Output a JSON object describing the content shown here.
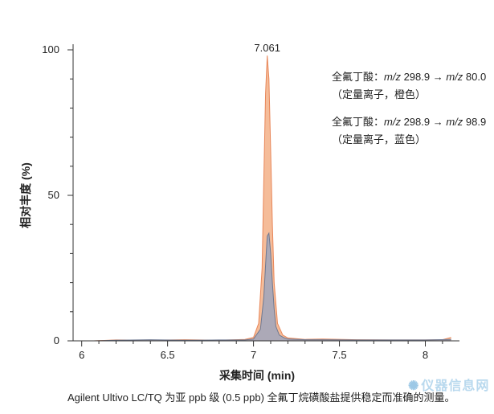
{
  "chart_data": {
    "type": "area",
    "xlabel": "采集时间 (min)",
    "ylabel": "相对丰度 (%)",
    "xlim": [
      5.95,
      8.18
    ],
    "ylim": [
      0,
      100
    ],
    "x_ticks": [
      "6",
      "6.5",
      "7",
      "7.5",
      "8"
    ],
    "x_tick_values": [
      6,
      6.5,
      7,
      7.5,
      8
    ],
    "y_ticks": [
      "0",
      "50",
      "100"
    ],
    "y_tick_values": [
      0,
      50,
      100
    ],
    "grid": false,
    "peak_annotation": {
      "label": "7.061",
      "x": 7.08,
      "y": 100
    },
    "series": [
      {
        "name": "全氟丁酸：m/z 298.9 → m/z 80.0（定量离子，橙色）",
        "color": "#f4b894",
        "line_color": "#e8875a",
        "x": [
          6.07,
          6.2,
          6.4,
          6.6,
          6.8,
          6.95,
          7.0,
          7.03,
          7.05,
          7.06,
          7.07,
          7.08,
          7.09,
          7.1,
          7.11,
          7.12,
          7.14,
          7.17,
          7.2,
          7.3,
          7.4,
          7.6,
          7.8,
          8.0,
          8.1,
          8.15
        ],
        "values": [
          0,
          0.3,
          0.2,
          0.4,
          0.2,
          0.5,
          1.2,
          6,
          25,
          55,
          85,
          98,
          90,
          65,
          40,
          20,
          6,
          2,
          1,
          0.5,
          0.6,
          0.4,
          0.3,
          0.3,
          0.4,
          1.2
        ]
      },
      {
        "name": "全氟丁酸：m/z 298.9 → m/z 98.9（定量离子，蓝色）",
        "color": "#a8a8b8",
        "line_color": "#6f7890",
        "x": [
          6.07,
          6.2,
          6.4,
          6.6,
          6.8,
          6.95,
          7.0,
          7.04,
          7.06,
          7.07,
          7.08,
          7.09,
          7.1,
          7.11,
          7.12,
          7.13,
          7.15,
          7.18,
          7.2,
          7.3,
          7.4,
          7.6,
          7.8,
          8.0,
          8.15
        ],
        "values": [
          0,
          0.2,
          0.4,
          0.2,
          0.3,
          0.3,
          0.6,
          4,
          15,
          26,
          36,
          37,
          30,
          20,
          11,
          5,
          2,
          1,
          0.6,
          0.4,
          0.4,
          0.3,
          0.3,
          0.3,
          0.5
        ]
      }
    ]
  },
  "legend": {
    "entries": [
      {
        "prefix": "全氟丁酸：",
        "mz1_label": "m/z",
        "mz1_value": " 298.9 → ",
        "mz2_label": "m/z",
        "mz2_value": " 80.0",
        "note": "（定量离子，橙色）"
      },
      {
        "prefix": "全氟丁酸：",
        "mz1_label": "m/z",
        "mz1_value": " 298.9 → ",
        "mz2_label": "m/z",
        "mz2_value": " 98.9",
        "note": "（定量离子，蓝色）"
      }
    ]
  },
  "caption": "Agilent Ultivo LC/TQ 为亚 ppb 级 (0.5 ppb) 全氟丁烷磺酸盐提供稳定而准确的测量。",
  "watermark": {
    "text": "仪器信息网",
    "icon": "molecule-icon"
  }
}
